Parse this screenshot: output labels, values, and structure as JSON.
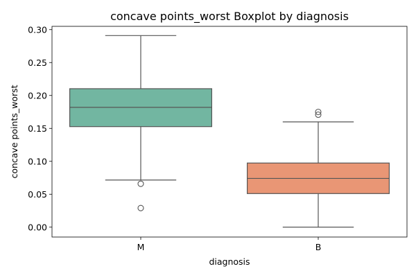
{
  "chart_data": {
    "type": "boxplot",
    "title": "concave points_worst Boxplot by diagnosis",
    "xlabel": "diagnosis",
    "ylabel": "concave points_worst",
    "categories": [
      "M",
      "B"
    ],
    "ylim": [
      -0.015,
      0.305
    ],
    "yticks": [
      0.0,
      0.05,
      0.1,
      0.15,
      0.2,
      0.25,
      0.3
    ],
    "ytick_labels": [
      "0.00",
      "0.05",
      "0.10",
      "0.15",
      "0.20",
      "0.25",
      "0.30"
    ],
    "grid": false,
    "legend": "none",
    "boxes": [
      {
        "category": "M",
        "color": "#72b6a1",
        "whisker_low": 0.0716,
        "q1": 0.1527,
        "median": 0.182,
        "q3": 0.2103,
        "whisker_high": 0.291,
        "outliers": [
          0.0659,
          0.029
        ]
      },
      {
        "category": "B",
        "color": "#e99675",
        "whisker_low": 0.0,
        "q1": 0.051,
        "median": 0.074,
        "q3": 0.0974,
        "whisker_high": 0.1599,
        "outliers": [
          0.1708,
          0.175
        ]
      }
    ],
    "line_color": "#555555"
  }
}
